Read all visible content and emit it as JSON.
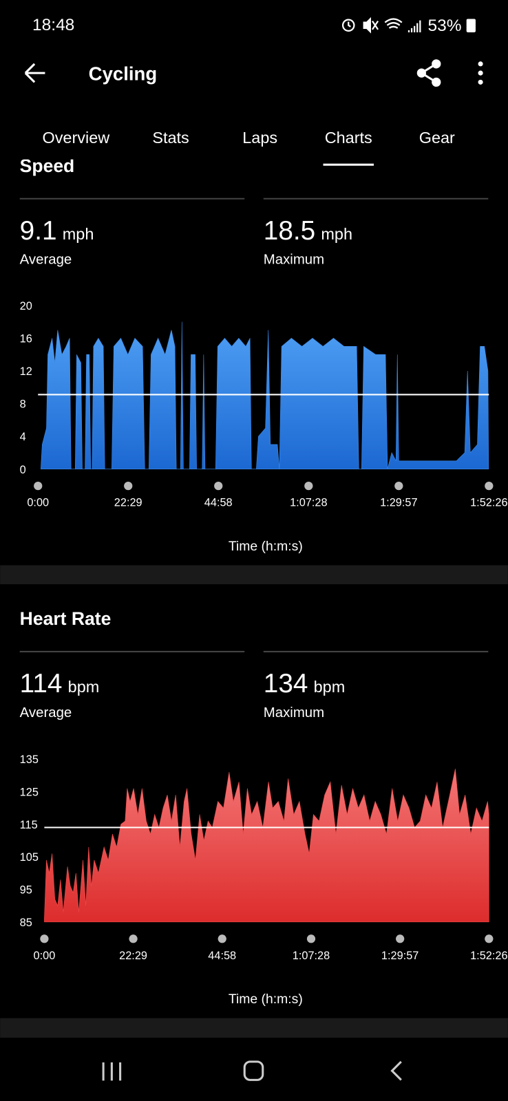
{
  "status_bar": {
    "time": "18:48",
    "battery": "53%"
  },
  "header": {
    "title": "Cycling"
  },
  "tabs": [
    "Overview",
    "Stats",
    "Laps",
    "Charts",
    "Gear"
  ],
  "active_tab": 3,
  "sections": [
    {
      "title": "Speed",
      "stats": [
        {
          "value": 9.1,
          "unit": "mph",
          "label": "Average"
        },
        {
          "value": 18.5,
          "unit": "mph",
          "label": "Maximum"
        }
      ],
      "chart": {
        "type": "area",
        "color": "#3b8ae6",
        "x": [
          42,
          63,
          126,
          147,
          210,
          252,
          294,
          357,
          420,
          473,
          494,
          557,
          578,
          641,
          662,
          704,
          725,
          767,
          788,
          809,
          830,
          903,
          977,
          998,
          1103,
          1134,
          1239,
          1344,
          1449,
          1565,
          1596,
          1659,
          1691,
          1796,
          1901,
          1995,
          2048,
          2069,
          2132,
          2153,
          2174,
          2268,
          2289,
          2352,
          2373,
          2457,
          2478,
          2499,
          2657,
          2688,
          2793,
          2898,
          3003,
          3108,
          3171,
          3192,
          3266,
          3297,
          3402,
          3444,
          3476,
          3581,
          3612,
          3644,
          3791,
          3948,
          4106,
          4263,
          4421,
          4578,
          4767,
          4799,
          4841,
          4872,
          5051,
          5198,
          5229,
          5292,
          5355,
          5376,
          5397,
          5628,
          5943,
          6258,
          6384,
          6426,
          6468,
          6573,
          6615,
          6678,
          6731,
          6741
        ],
        "values": [
          0,
          3,
          5,
          14,
          16,
          13,
          17,
          14,
          15,
          16,
          0,
          0,
          14,
          13,
          0,
          0,
          14,
          14,
          0,
          0,
          15,
          16,
          15,
          0,
          0,
          15,
          16,
          14,
          16,
          15,
          0,
          0,
          14,
          16,
          14,
          17,
          15,
          0,
          0,
          18,
          0,
          0,
          14,
          14,
          0,
          0,
          14,
          0,
          0,
          15,
          16,
          15,
          16,
          15,
          16,
          0,
          0,
          4,
          5,
          17,
          3,
          3,
          0,
          15,
          16,
          15,
          16,
          15,
          16,
          15,
          15,
          0,
          0,
          15,
          14,
          14,
          0,
          2,
          1,
          14,
          1,
          1,
          1,
          1,
          2,
          12,
          2,
          3,
          15,
          15,
          12,
          0
        ],
        "xlim": [
          0,
          6746
        ],
        "xticks": [
          {
            "value": 0,
            "label": "0:00"
          },
          {
            "value": 1349,
            "label": "22:29"
          },
          {
            "value": 2698,
            "label": "44:58"
          },
          {
            "value": 4048,
            "label": "1:07:28"
          },
          {
            "value": 5397,
            "label": "1:29:57"
          },
          {
            "value": 6746,
            "label": "1:52:26"
          }
        ],
        "ylim": [
          0,
          20
        ],
        "yticks": [
          0,
          4,
          8,
          12,
          16,
          20
        ],
        "xlabel": "Time (h:m:s)"
      }
    },
    {
      "title": "Heart Rate",
      "stats": [
        {
          "value": 114,
          "unit": "bpm",
          "label": "Average"
        },
        {
          "value": 134,
          "unit": "bpm",
          "label": "Maximum"
        }
      ],
      "chart": {
        "type": "area",
        "color": "#ea4a4a",
        "x": [
          0,
          32,
          75,
          117,
          160,
          203,
          245,
          288,
          352,
          394,
          437,
          480,
          522,
          586,
          629,
          672,
          714,
          757,
          821,
          906,
          970,
          1034,
          1098,
          1162,
          1226,
          1258,
          1301,
          1354,
          1418,
          1482,
          1546,
          1610,
          1674,
          1738,
          1802,
          1866,
          1929,
          1993,
          2057,
          2121,
          2164,
          2228,
          2292,
          2356,
          2420,
          2484,
          2548,
          2633,
          2718,
          2804,
          2868,
          2953,
          3017,
          3081,
          3145,
          3230,
          3315,
          3401,
          3465,
          3550,
          3635,
          3699,
          3784,
          3870,
          3955,
          4019,
          4083,
          4168,
          4253,
          4339,
          4424,
          4509,
          4594,
          4680,
          4765,
          4850,
          4936,
          5021,
          5106,
          5191,
          5277,
          5362,
          5447,
          5533,
          5618,
          5703,
          5788,
          5874,
          5959,
          6044,
          6130,
          6236,
          6300,
          6385,
          6470,
          6556,
          6641,
          6726,
          6746
        ],
        "values": [
          86,
          104,
          100,
          106,
          92,
          90,
          98,
          88,
          102,
          96,
          94,
          100,
          88,
          104,
          90,
          108,
          96,
          104,
          100,
          108,
          104,
          112,
          108,
          115,
          116,
          126,
          122,
          126,
          118,
          126,
          116,
          112,
          118,
          114,
          120,
          124,
          116,
          124,
          108,
          122,
          126,
          112,
          104,
          118,
          110,
          116,
          114,
          122,
          120,
          131,
          122,
          128,
          112,
          126,
          118,
          122,
          114,
          128,
          120,
          122,
          116,
          129,
          118,
          122,
          112,
          106,
          118,
          116,
          124,
          128,
          112,
          127,
          118,
          126,
          120,
          124,
          116,
          122,
          118,
          112,
          126,
          116,
          124,
          120,
          114,
          116,
          124,
          120,
          128,
          114,
          122,
          132,
          118,
          124,
          112,
          120,
          116,
          122,
          118
        ],
        "xlim": [
          0,
          6746
        ],
        "xticks": [
          {
            "value": 0,
            "label": "0:00"
          },
          {
            "value": 1349,
            "label": "22:29"
          },
          {
            "value": 2698,
            "label": "44:58"
          },
          {
            "value": 4048,
            "label": "1:07:28"
          },
          {
            "value": 5397,
            "label": "1:29:57"
          },
          {
            "value": 6746,
            "label": "1:52:26"
          }
        ],
        "ylim": [
          85,
          135
        ],
        "yticks": [
          85,
          95,
          105,
          115,
          125,
          135
        ],
        "xlabel": "Time (h:m:s)"
      }
    }
  ]
}
